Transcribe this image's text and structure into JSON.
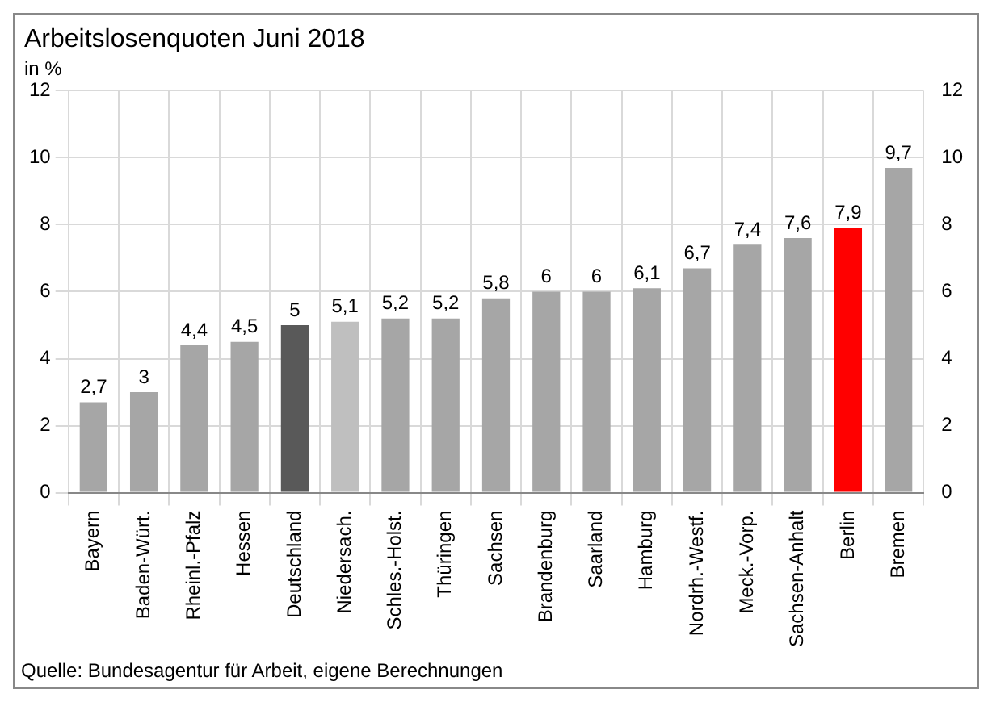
{
  "chart_data": {
    "type": "bar",
    "title": "Arbeitslosenquoten Juni 2018",
    "ylabel": "in %",
    "categories": [
      "Bayern",
      "Baden-Würt.",
      "Rheinl.-Pfalz",
      "Hessen",
      "Deutschland",
      "Niedersach.",
      "Schles.-Holst.",
      "Thüringen",
      "Sachsen",
      "Brandenburg",
      "Saarland",
      "Hamburg",
      "Nordrh.-Westf.",
      "Meck.-Vorp.",
      "Sachsen-Anhalt",
      "Berlin",
      "Bremen"
    ],
    "values": [
      2.7,
      3,
      4.4,
      4.5,
      5,
      5.1,
      5.2,
      5.2,
      5.8,
      6,
      6,
      6.1,
      6.7,
      7.4,
      7.6,
      7.9,
      9.7
    ],
    "value_labels": [
      "2,7",
      "3",
      "4,4",
      "4,5",
      "5",
      "5,1",
      "5,2",
      "5,2",
      "5,8",
      "6",
      "6",
      "6,1",
      "6,7",
      "7,4",
      "7,6",
      "7,9",
      "9,7"
    ],
    "colors": [
      "#a6a6a6",
      "#a6a6a6",
      "#a6a6a6",
      "#a6a6a6",
      "#595959",
      "#bfbfbf",
      "#a6a6a6",
      "#a6a6a6",
      "#a6a6a6",
      "#a6a6a6",
      "#a6a6a6",
      "#a6a6a6",
      "#a6a6a6",
      "#a6a6a6",
      "#a6a6a6",
      "#ff0000",
      "#a6a6a6"
    ],
    "ylim": [
      0,
      12
    ],
    "yticks": [
      0,
      2,
      4,
      6,
      8,
      10,
      12
    ],
    "y2lim": [
      0,
      12
    ],
    "y2ticks": [
      0,
      2,
      4,
      6,
      8,
      10,
      12
    ],
    "grid": true,
    "legend": false,
    "annotations": [
      "Quelle: Bundesagentur für Arbeit, eigene Berechnungen"
    ]
  }
}
